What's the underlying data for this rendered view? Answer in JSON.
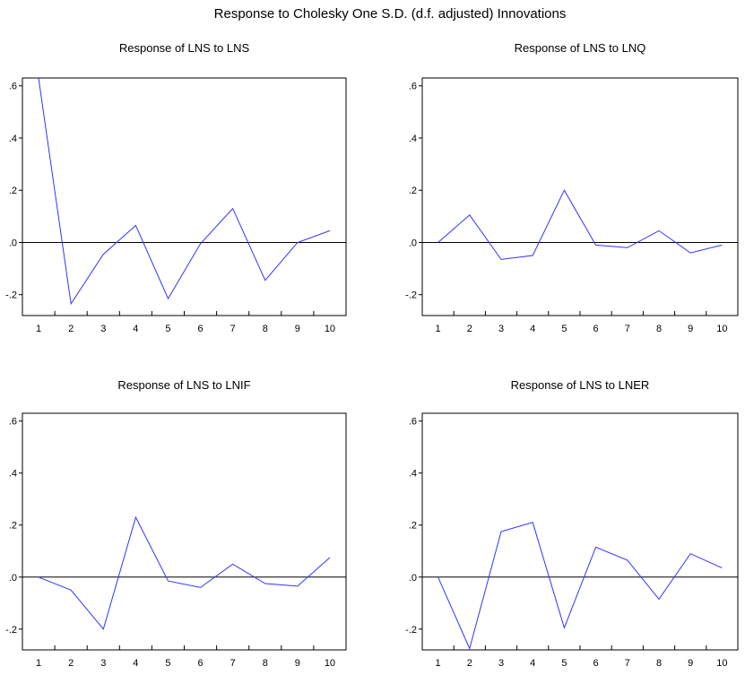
{
  "figure": {
    "title": "Response to Cholesky One S.D. (d.f. adjusted) Innovations"
  },
  "colors": {
    "line": "#3333ff",
    "zero_line": "#000000",
    "frame": "#000000"
  },
  "chart_data": [
    {
      "type": "line",
      "title": "Response of LNS to LNS",
      "x": [
        1,
        2,
        3,
        4,
        5,
        6,
        7,
        8,
        9,
        10
      ],
      "series": [
        {
          "values": [
            0.63,
            -0.235,
            -0.045,
            0.065,
            -0.215,
            -0.005,
            0.13,
            -0.145,
            0.0,
            0.045
          ]
        }
      ],
      "ylim": [
        -0.28,
        0.63
      ],
      "yticks": [
        ".6",
        ".4",
        ".2",
        ".0",
        "-.2"
      ],
      "ytick_values": [
        0.6,
        0.4,
        0.2,
        0.0,
        -0.2
      ],
      "xticks": [
        "1",
        "2",
        "3",
        "4",
        "5",
        "6",
        "7",
        "8",
        "9",
        "10"
      ]
    },
    {
      "type": "line",
      "title": "Response of LNS to LNQ",
      "x": [
        1,
        2,
        3,
        4,
        5,
        6,
        7,
        8,
        9,
        10
      ],
      "series": [
        {
          "values": [
            0.0,
            0.105,
            -0.065,
            -0.05,
            0.2,
            -0.01,
            -0.02,
            0.045,
            -0.04,
            -0.01
          ]
        }
      ],
      "ylim": [
        -0.28,
        0.63
      ],
      "yticks": [
        ".6",
        ".4",
        ".2",
        ".0",
        "-.2"
      ],
      "ytick_values": [
        0.6,
        0.4,
        0.2,
        0.0,
        -0.2
      ],
      "xticks": [
        "1",
        "2",
        "3",
        "4",
        "5",
        "6",
        "7",
        "8",
        "9",
        "10"
      ]
    },
    {
      "type": "line",
      "title": "Response of LNS to LNIF",
      "x": [
        1,
        2,
        3,
        4,
        5,
        6,
        7,
        8,
        9,
        10
      ],
      "series": [
        {
          "values": [
            0.0,
            -0.05,
            -0.2,
            0.23,
            -0.015,
            -0.04,
            0.05,
            -0.025,
            -0.035,
            0.075
          ]
        }
      ],
      "ylim": [
        -0.28,
        0.63
      ],
      "yticks": [
        ".6",
        ".4",
        ".2",
        ".0",
        "-.2"
      ],
      "ytick_values": [
        0.6,
        0.4,
        0.2,
        0.0,
        -0.2
      ],
      "xticks": [
        "1",
        "2",
        "3",
        "4",
        "5",
        "6",
        "7",
        "8",
        "9",
        "10"
      ]
    },
    {
      "type": "line",
      "title": "Response of LNS to LNER",
      "x": [
        1,
        2,
        3,
        4,
        5,
        6,
        7,
        8,
        9,
        10
      ],
      "series": [
        {
          "values": [
            0.0,
            -0.275,
            0.175,
            0.21,
            -0.195,
            0.115,
            0.065,
            -0.085,
            0.09,
            0.035
          ]
        }
      ],
      "ylim": [
        -0.28,
        0.63
      ],
      "yticks": [
        ".6",
        ".4",
        ".2",
        ".0",
        "-.2"
      ],
      "ytick_values": [
        0.6,
        0.4,
        0.2,
        0.0,
        -0.2
      ],
      "xticks": [
        "1",
        "2",
        "3",
        "4",
        "5",
        "6",
        "7",
        "8",
        "9",
        "10"
      ]
    }
  ]
}
